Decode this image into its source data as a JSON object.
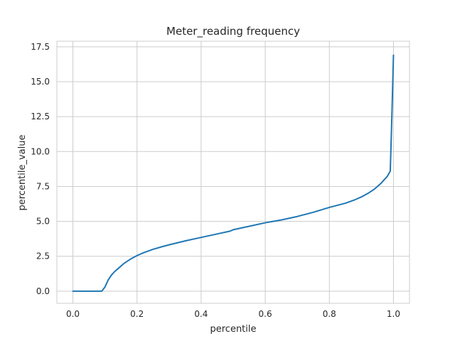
{
  "chart_data": {
    "type": "line",
    "title": "Meter_reading frequency",
    "xlabel": "percentile",
    "ylabel": "percentile_value",
    "xlim": [
      -0.05,
      1.05
    ],
    "ylim": [
      -0.87,
      17.9
    ],
    "xticks": [
      0.0,
      0.2,
      0.4,
      0.6,
      0.8,
      1.0
    ],
    "xtick_labels": [
      "0.0",
      "0.2",
      "0.4",
      "0.6",
      "0.8",
      "1.0"
    ],
    "yticks": [
      0.0,
      2.5,
      5.0,
      7.5,
      10.0,
      12.5,
      15.0,
      17.5
    ],
    "ytick_labels": [
      "0.0",
      "2.5",
      "5.0",
      "7.5",
      "10.0",
      "12.5",
      "15.0",
      "17.5"
    ],
    "grid": true,
    "legend": false,
    "series": [
      {
        "color": "#1f77b4",
        "x": [
          0.0,
          0.02,
          0.04,
          0.06,
          0.08,
          0.09,
          0.1,
          0.11,
          0.12,
          0.13,
          0.14,
          0.15,
          0.16,
          0.18,
          0.2,
          0.22,
          0.25,
          0.28,
          0.3,
          0.35,
          0.4,
          0.45,
          0.49,
          0.5,
          0.55,
          0.6,
          0.65,
          0.7,
          0.75,
          0.8,
          0.85,
          0.88,
          0.9,
          0.92,
          0.94,
          0.96,
          0.97,
          0.98,
          0.99,
          0.995,
          1.0
        ],
        "y": [
          0.0,
          0.0,
          0.0,
          0.0,
          0.0,
          0.0,
          0.3,
          0.8,
          1.15,
          1.4,
          1.6,
          1.8,
          2.0,
          2.3,
          2.55,
          2.75,
          3.0,
          3.2,
          3.32,
          3.6,
          3.85,
          4.1,
          4.3,
          4.4,
          4.65,
          4.9,
          5.1,
          5.35,
          5.65,
          6.0,
          6.3,
          6.55,
          6.75,
          7.0,
          7.3,
          7.7,
          7.95,
          8.2,
          8.6,
          12.5,
          16.9
        ]
      }
    ]
  }
}
